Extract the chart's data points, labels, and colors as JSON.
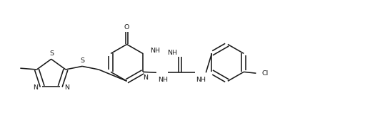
{
  "bg": "#ffffff",
  "lc": "#1a1a1a",
  "lw": 1.15,
  "fs": 6.8,
  "figsize": [
    5.32,
    1.86
  ],
  "dpi": 100,
  "xlim": [
    -0.5,
    11.0
  ],
  "ylim": [
    -0.2,
    3.8
  ]
}
